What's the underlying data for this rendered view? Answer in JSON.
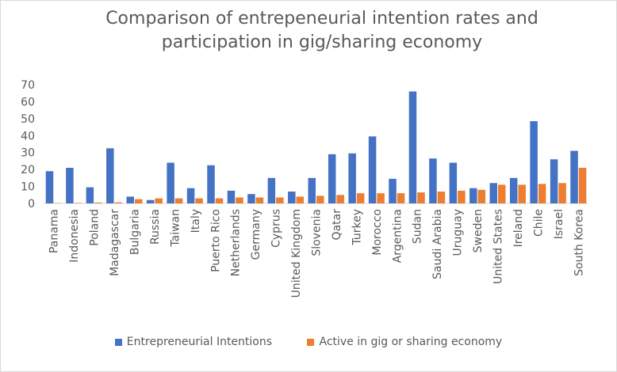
{
  "chart_data": {
    "type": "bar",
    "title": "Comparison of entrepeneurial intention rates and participation in gig/sharing economy",
    "categories": [
      "Panama",
      "Indonesia",
      "Poland",
      "Madagascar",
      "Bulgaria",
      "Russia",
      "Taiwan",
      "Italy",
      "Puerto Rico",
      "Netherlands",
      "Germany",
      "Cyprus",
      "United Kingdom",
      "Slovenia",
      "Qatar",
      "Turkey",
      "Morocco",
      "Argentina",
      "Sudan",
      "Saudi Arabia",
      "Uruguay",
      "Sweden",
      "United States",
      "Ireland",
      "Chile",
      "Israel",
      "South Korea"
    ],
    "series": [
      {
        "name": "Entrepreneurial Intentions",
        "color": "#4472c4",
        "values": [
          19,
          21,
          9.5,
          32.5,
          4,
          2,
          24,
          9,
          22.5,
          7.5,
          5.5,
          15,
          7,
          15,
          29,
          29.5,
          39.5,
          14.5,
          66,
          26.5,
          24,
          9,
          12,
          15,
          48.5,
          26,
          31
        ]
      },
      {
        "name": "Active in gig or sharing economy",
        "color": "#ed7d31",
        "values": [
          0.2,
          0.3,
          0.5,
          0.6,
          2.5,
          3,
          3,
          3,
          3,
          3.5,
          3.5,
          3.5,
          4,
          4.5,
          5,
          6,
          6,
          6,
          6.5,
          7,
          7.5,
          8,
          11,
          11,
          11.5,
          12,
          21
        ]
      }
    ],
    "yticks": [
      "0",
      "10",
      "20",
      "30",
      "40",
      "50",
      "60",
      "70"
    ],
    "ylim": [
      0,
      70
    ],
    "grid": false,
    "legend_position": "bottom"
  }
}
